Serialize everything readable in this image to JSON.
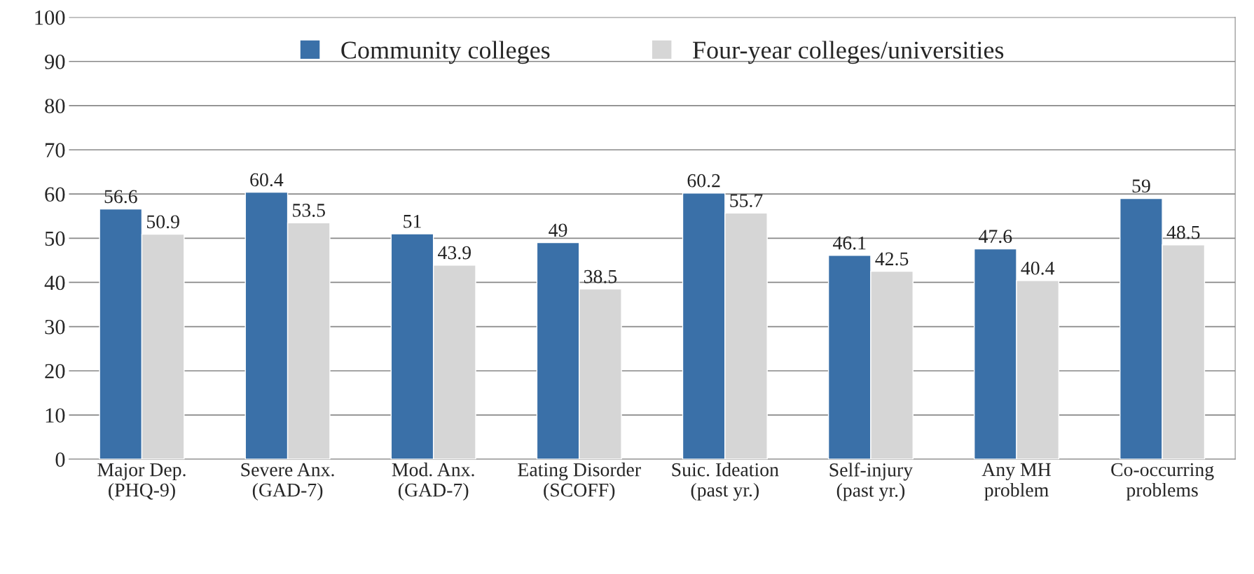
{
  "chart_data": {
    "type": "bar",
    "categories": [
      "Major Dep. (PHQ-9)",
      "Severe Anx. (GAD-7)",
      "Mod. Anx. (GAD-7)",
      "Eating Disorder (SCOFF)",
      "Suic. Ideation (past yr.)",
      "Self-injury (past yr.)",
      "Any MH problem",
      "Co-occurring problems"
    ],
    "series": [
      {
        "name": "Community colleges",
        "color": "#3a70a8",
        "values": [
          56.6,
          60.4,
          51,
          49,
          60.2,
          46.1,
          47.6,
          59
        ]
      },
      {
        "name": "Four-year colleges/universities",
        "color": "#d6d6d6",
        "values": [
          50.9,
          53.5,
          43.9,
          38.5,
          55.7,
          42.5,
          40.4,
          48.5
        ]
      }
    ],
    "ylim": [
      0,
      100
    ],
    "yticks": [
      0,
      10,
      20,
      30,
      40,
      50,
      60,
      70,
      80,
      90,
      100
    ],
    "grid": "y",
    "legend": "top",
    "data_labels": true
  }
}
